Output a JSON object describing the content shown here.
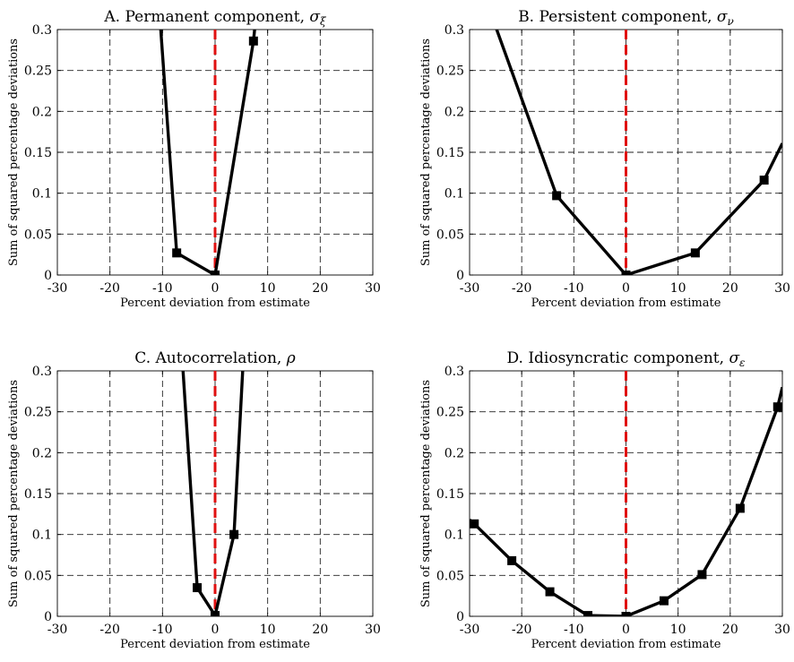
{
  "chart_data": [
    {
      "type": "line",
      "title": "A. Permanent component, ",
      "title_symbol": "σ",
      "title_sub": "ξ",
      "xlabel": "Percent deviation from estimate",
      "ylabel": "Sum of squared percentage deviations",
      "xlim": [
        -30,
        30
      ],
      "ylim": [
        0,
        0.3
      ],
      "xticks": [
        -30,
        -20,
        -10,
        0,
        10,
        20,
        30
      ],
      "xtick_labels": [
        "-30",
        "-20",
        "-10",
        "0",
        "10",
        "20",
        "30"
      ],
      "yticks": [
        0,
        0.05,
        0.1,
        0.15,
        0.2,
        0.25,
        0.3
      ],
      "ytick_labels": [
        "0",
        "0.05",
        "0.1",
        "0.15",
        "0.2",
        "0.25",
        "0.3"
      ],
      "grid": true,
      "reference_line_x": 0,
      "reference_color": "#e01010",
      "series": [
        {
          "color": "#000000",
          "marker": "square",
          "x": [
            -11,
            -7.3,
            0,
            7.3,
            8
          ],
          "y": [
            0.36,
            0.027,
            0,
            0.286,
            0.33
          ],
          "markers": [
            [
              -7.3,
              0.027
            ],
            [
              0,
              0
            ],
            [
              7.3,
              0.286
            ]
          ]
        }
      ]
    },
    {
      "type": "line",
      "title": "B. Persistent component, ",
      "title_symbol": "σ",
      "title_sub": "ν",
      "xlabel": "Percent deviation from estimate",
      "ylabel": "Sum of squared percentage deviations",
      "xlim": [
        -30,
        30
      ],
      "ylim": [
        0,
        0.3
      ],
      "xticks": [
        -30,
        -20,
        -10,
        0,
        10,
        20,
        30
      ],
      "xtick_labels": [
        "-30",
        "-20",
        "-10",
        "0",
        "10",
        "20",
        "30"
      ],
      "yticks": [
        0,
        0.05,
        0.1,
        0.15,
        0.2,
        0.25,
        0.3
      ],
      "ytick_labels": [
        "0",
        "0.05",
        "0.1",
        "0.15",
        "0.2",
        "0.25",
        "0.3"
      ],
      "grid": true,
      "reference_line_x": 0,
      "reference_color": "#e01010",
      "series": [
        {
          "color": "#000000",
          "marker": "square",
          "x": [
            -26.5,
            -13.3,
            0,
            13.3,
            26.5,
            30
          ],
          "y": [
            0.33,
            0.097,
            0,
            0.027,
            0.116,
            0.161
          ],
          "markers": [
            [
              -13.3,
              0.097
            ],
            [
              0,
              0
            ],
            [
              13.3,
              0.027
            ],
            [
              26.5,
              0.116
            ]
          ]
        }
      ]
    },
    {
      "type": "line",
      "title": "C. Autocorrelation, ",
      "title_symbol": "ρ",
      "title_sub": "",
      "xlabel": "Percent deviation from estimate",
      "ylabel": "Sum of squared percentage deviations",
      "xlim": [
        -30,
        30
      ],
      "ylim": [
        0,
        0.3
      ],
      "xticks": [
        -30,
        -20,
        -10,
        0,
        10,
        20,
        30
      ],
      "xtick_labels": [
        "-30",
        "-20",
        "-10",
        "0",
        "10",
        "20",
        "30"
      ],
      "yticks": [
        0,
        0.05,
        0.1,
        0.15,
        0.2,
        0.25,
        0.3
      ],
      "ytick_labels": [
        "0",
        "0.05",
        "0.1",
        "0.15",
        "0.2",
        "0.25",
        "0.3"
      ],
      "grid": true,
      "reference_line_x": 0,
      "reference_color": "#e01010",
      "series": [
        {
          "color": "#000000",
          "marker": "square",
          "x": [
            -6.5,
            -3.4,
            0,
            3.6,
            5.5
          ],
          "y": [
            0.34,
            0.035,
            0.001,
            0.1,
            0.33
          ],
          "markers": [
            [
              -3.4,
              0.035
            ],
            [
              0,
              0.001
            ],
            [
              3.6,
              0.1
            ]
          ]
        }
      ]
    },
    {
      "type": "line",
      "title": "D. Idiosyncratic component, ",
      "title_symbol": "σ",
      "title_sub": "ε",
      "xlabel": "Percent deviation from estimate",
      "ylabel": "Sum of squared percentage deviations",
      "xlim": [
        -30,
        30
      ],
      "ylim": [
        0,
        0.3
      ],
      "xticks": [
        -30,
        -20,
        -10,
        0,
        10,
        20,
        30
      ],
      "xtick_labels": [
        "-30",
        "-20",
        "-10",
        "0",
        "10",
        "20",
        "30"
      ],
      "yticks": [
        0,
        0.05,
        0.1,
        0.15,
        0.2,
        0.25,
        0.3
      ],
      "ytick_labels": [
        "0",
        "0.05",
        "0.1",
        "0.15",
        "0.2",
        "0.25",
        "0.3"
      ],
      "grid": true,
      "reference_line_x": 0,
      "reference_color": "#e01010",
      "series": [
        {
          "color": "#000000",
          "marker": "square",
          "x": [
            -30,
            -29.1,
            -21.9,
            -14.6,
            -7.3,
            0,
            7.3,
            14.6,
            21.9,
            29.1,
            30
          ],
          "y": [
            0.118,
            0.113,
            0.068,
            0.03,
            0.001,
            0,
            0.019,
            0.051,
            0.132,
            0.256,
            0.28
          ],
          "markers": [
            [
              -29.1,
              0.113
            ],
            [
              -21.9,
              0.068
            ],
            [
              -14.6,
              0.03
            ],
            [
              -7.3,
              0.001
            ],
            [
              0,
              0
            ],
            [
              7.3,
              0.019
            ],
            [
              14.6,
              0.051
            ],
            [
              21.9,
              0.132
            ],
            [
              29.1,
              0.256
            ]
          ]
        }
      ]
    }
  ]
}
